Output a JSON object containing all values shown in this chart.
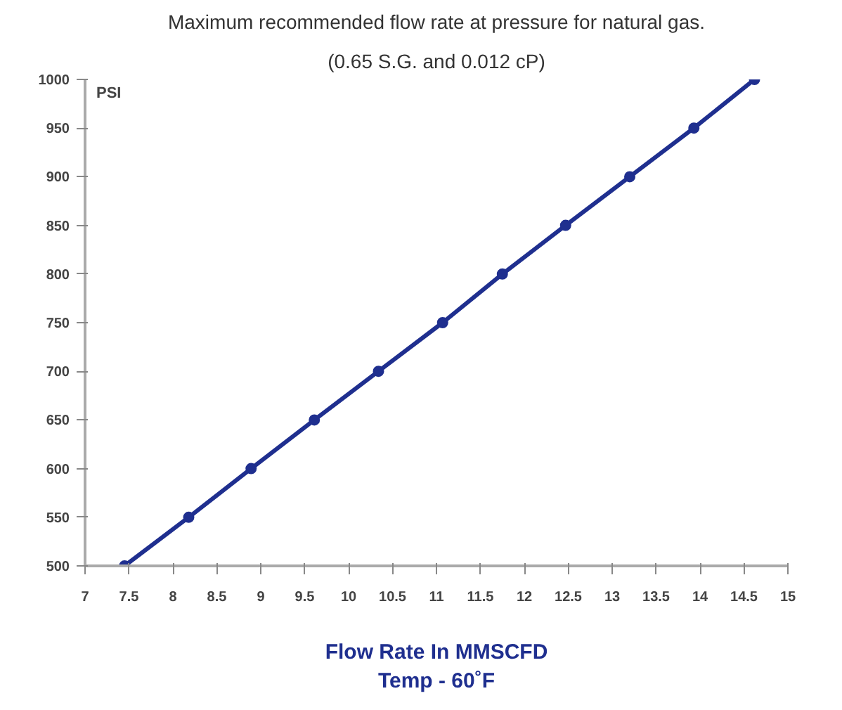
{
  "chart_data": {
    "type": "line",
    "title": "Maximum recommended flow rate at pressure for natural gas.",
    "subtitle": "(0.65 S.G. and 0.012 cP)",
    "xlabel": "Flow Rate In MMSCFD\nTemp - 60˚F",
    "ylabel": "PSI",
    "x": [
      7.45,
      8.18,
      8.89,
      9.61,
      10.34,
      11.07,
      11.75,
      12.47,
      13.2,
      13.93,
      14.62
    ],
    "series": [
      {
        "color": "#1f2f8f",
        "values": [
          500,
          550,
          600,
          650,
          700,
          750,
          800,
          850,
          900,
          950,
          1000
        ]
      }
    ],
    "xlim": [
      7,
      15
    ],
    "xticks": [
      7,
      7.5,
      8,
      8.5,
      9,
      9.5,
      10,
      10.5,
      11,
      11.5,
      12,
      12.5,
      13,
      13.5,
      14,
      14.5,
      15
    ],
    "ylim": [
      500,
      1000
    ],
    "yticks": [
      500,
      550,
      600,
      650,
      700,
      750,
      800,
      850,
      900,
      950,
      1000
    ],
    "grid": false,
    "marker": "circle",
    "line_style": "solid"
  }
}
